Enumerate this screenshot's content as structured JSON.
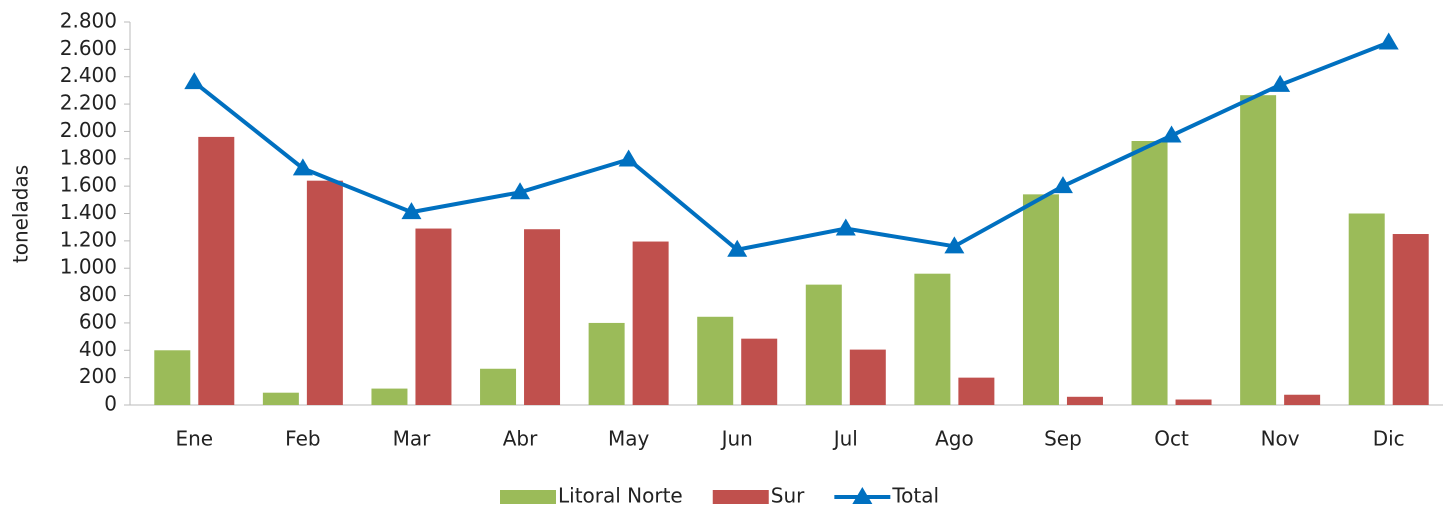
{
  "chart_data": {
    "type": "bar_line",
    "ylabel": "toneladas",
    "categories": [
      "Ene",
      "Feb",
      "Mar",
      "Abr",
      "May",
      "Jun",
      "Jul",
      "Ago",
      "Sep",
      "Oct",
      "Nov",
      "Dic"
    ],
    "series": [
      {
        "name": "Litoral Norte",
        "type": "bar",
        "color": "#9bbb59",
        "values": [
          400,
          90,
          120,
          265,
          600,
          645,
          880,
          960,
          1540,
          1930,
          2265,
          1400
        ]
      },
      {
        "name": "Sur",
        "type": "bar",
        "color": "#c0504d",
        "values": [
          1960,
          1640,
          1290,
          1285,
          1195,
          485,
          405,
          200,
          60,
          40,
          75,
          1250
        ]
      },
      {
        "name": "Total",
        "type": "line",
        "color": "#0070c0",
        "values": [
          2360,
          1730,
          1410,
          1555,
          1795,
          1135,
          1290,
          1160,
          1600,
          1970,
          2340,
          2650
        ]
      }
    ],
    "ylim": [
      0,
      2800
    ],
    "yticks": [
      0,
      200,
      400,
      600,
      800,
      {
        "value": 1000,
        "label": "1.000"
      },
      {
        "value": 1200,
        "label": "1.200"
      },
      {
        "value": 1400,
        "label": "1.400"
      },
      {
        "value": 1600,
        "label": "1.600"
      },
      {
        "value": 1800,
        "label": "1.800"
      },
      {
        "value": 2000,
        "label": "2.000"
      },
      {
        "value": 2200,
        "label": "2.200"
      },
      {
        "value": 2400,
        "label": "2.400"
      },
      {
        "value": 2600,
        "label": "2.600"
      },
      {
        "value": 2800,
        "label": "2.800"
      }
    ],
    "legend": "bottom"
  }
}
